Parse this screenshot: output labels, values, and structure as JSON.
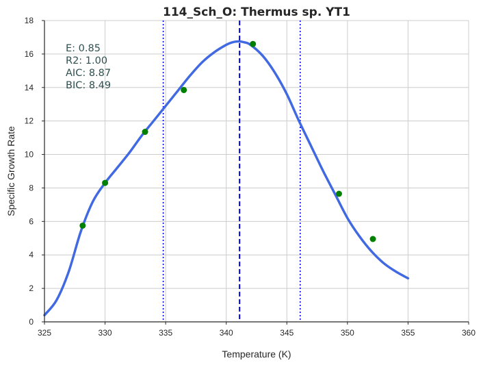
{
  "chart_data": {
    "type": "line",
    "title": "114_Sch_O: Thermus sp. YT1",
    "xlabel": "Temperature (K)",
    "ylabel": "Specific Growth Rate",
    "xlim": [
      325,
      360
    ],
    "ylim": [
      0,
      18
    ],
    "xticks": [
      325,
      330,
      335,
      340,
      345,
      350,
      355,
      360
    ],
    "yticks": [
      0,
      2,
      4,
      6,
      8,
      10,
      12,
      14,
      16,
      18
    ],
    "grid": true,
    "series": [
      {
        "kind": "line",
        "color": "#4169e1",
        "x": [
          325.0,
          326.0,
          327.0,
          328.0,
          329.0,
          330.0,
          331.0,
          332.0,
          333.0,
          334.0,
          335.0,
          336.0,
          337.0,
          338.0,
          339.0,
          340.0,
          340.5,
          341.0,
          341.5,
          342.0,
          343.0,
          344.0,
          345.0,
          346.0,
          347.0,
          348.0,
          349.0,
          350.0,
          351.0,
          352.0,
          353.0,
          354.0,
          355.0
        ],
        "y": [
          0.4,
          1.3,
          3.0,
          5.4,
          7.2,
          8.3,
          9.2,
          10.1,
          11.1,
          12.0,
          12.9,
          13.8,
          14.7,
          15.5,
          16.1,
          16.55,
          16.7,
          16.75,
          16.7,
          16.55,
          15.9,
          14.9,
          13.6,
          12.0,
          10.5,
          9.0,
          7.6,
          6.2,
          5.1,
          4.2,
          3.5,
          3.0,
          2.6
        ]
      },
      {
        "kind": "scatter",
        "color": "#008000",
        "x": [
          328.15,
          330.0,
          333.3,
          336.5,
          342.2,
          349.3,
          352.1
        ],
        "y": [
          5.75,
          8.3,
          11.35,
          13.85,
          16.6,
          7.65,
          4.95
        ]
      }
    ],
    "vlines": [
      {
        "x": 341.1,
        "style": "dashed",
        "color": "#0000cd"
      },
      {
        "x": 334.8,
        "style": "dotted",
        "color": "#0000ff"
      },
      {
        "x": 346.1,
        "style": "dotted",
        "color": "#0000ff"
      }
    ],
    "annotations": [
      "E:  0.85",
      "R2:  1.00",
      "AIC: 8.87",
      "BIC: 8.49"
    ]
  }
}
